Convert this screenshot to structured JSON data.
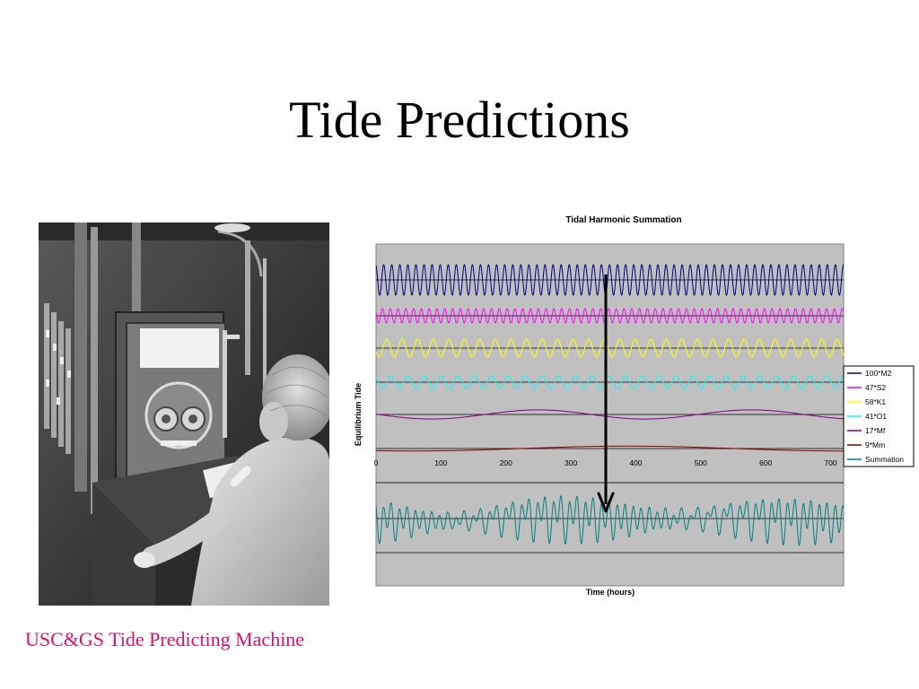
{
  "slide": {
    "title": "Tide Predictions",
    "caption": "USC&GS Tide Predicting Machine",
    "photo_alt": "USC&GS Tide Predicting Machine"
  },
  "chart_data": {
    "type": "line",
    "title": "Tidal Harmonic Summation",
    "xlabel": "Time (hours)",
    "ylabel": "Equilibrium Tide",
    "xlim": [
      0,
      720
    ],
    "xticks": [
      0,
      100,
      200,
      300,
      400,
      500,
      600,
      700
    ],
    "grid": true,
    "background": "#c0c0c0",
    "legend_position": "right",
    "series": [
      {
        "name": "100*M2",
        "color": "#000080",
        "period_hours": 12.42,
        "amplitude": 100
      },
      {
        "name": "47*S2",
        "color": "#ff00ff",
        "period_hours": 12.0,
        "amplitude": 47
      },
      {
        "name": "58*K1",
        "color": "#ffff00",
        "period_hours": 23.93,
        "amplitude": 58
      },
      {
        "name": "41*O1",
        "color": "#00ffff",
        "period_hours": 25.82,
        "amplitude": 41
      },
      {
        "name": "17*Mf",
        "color": "#800080",
        "period_hours": 327.86,
        "amplitude": 17
      },
      {
        "name": "9*Mm",
        "color": "#800000",
        "period_hours": 661.31,
        "amplitude": 9
      },
      {
        "name": "Summation",
        "color": "#008080",
        "amplitude": 272
      }
    ],
    "annotation": "arrow pointing down from constituents to summation"
  },
  "colors": {
    "caption": "#d6136b"
  }
}
